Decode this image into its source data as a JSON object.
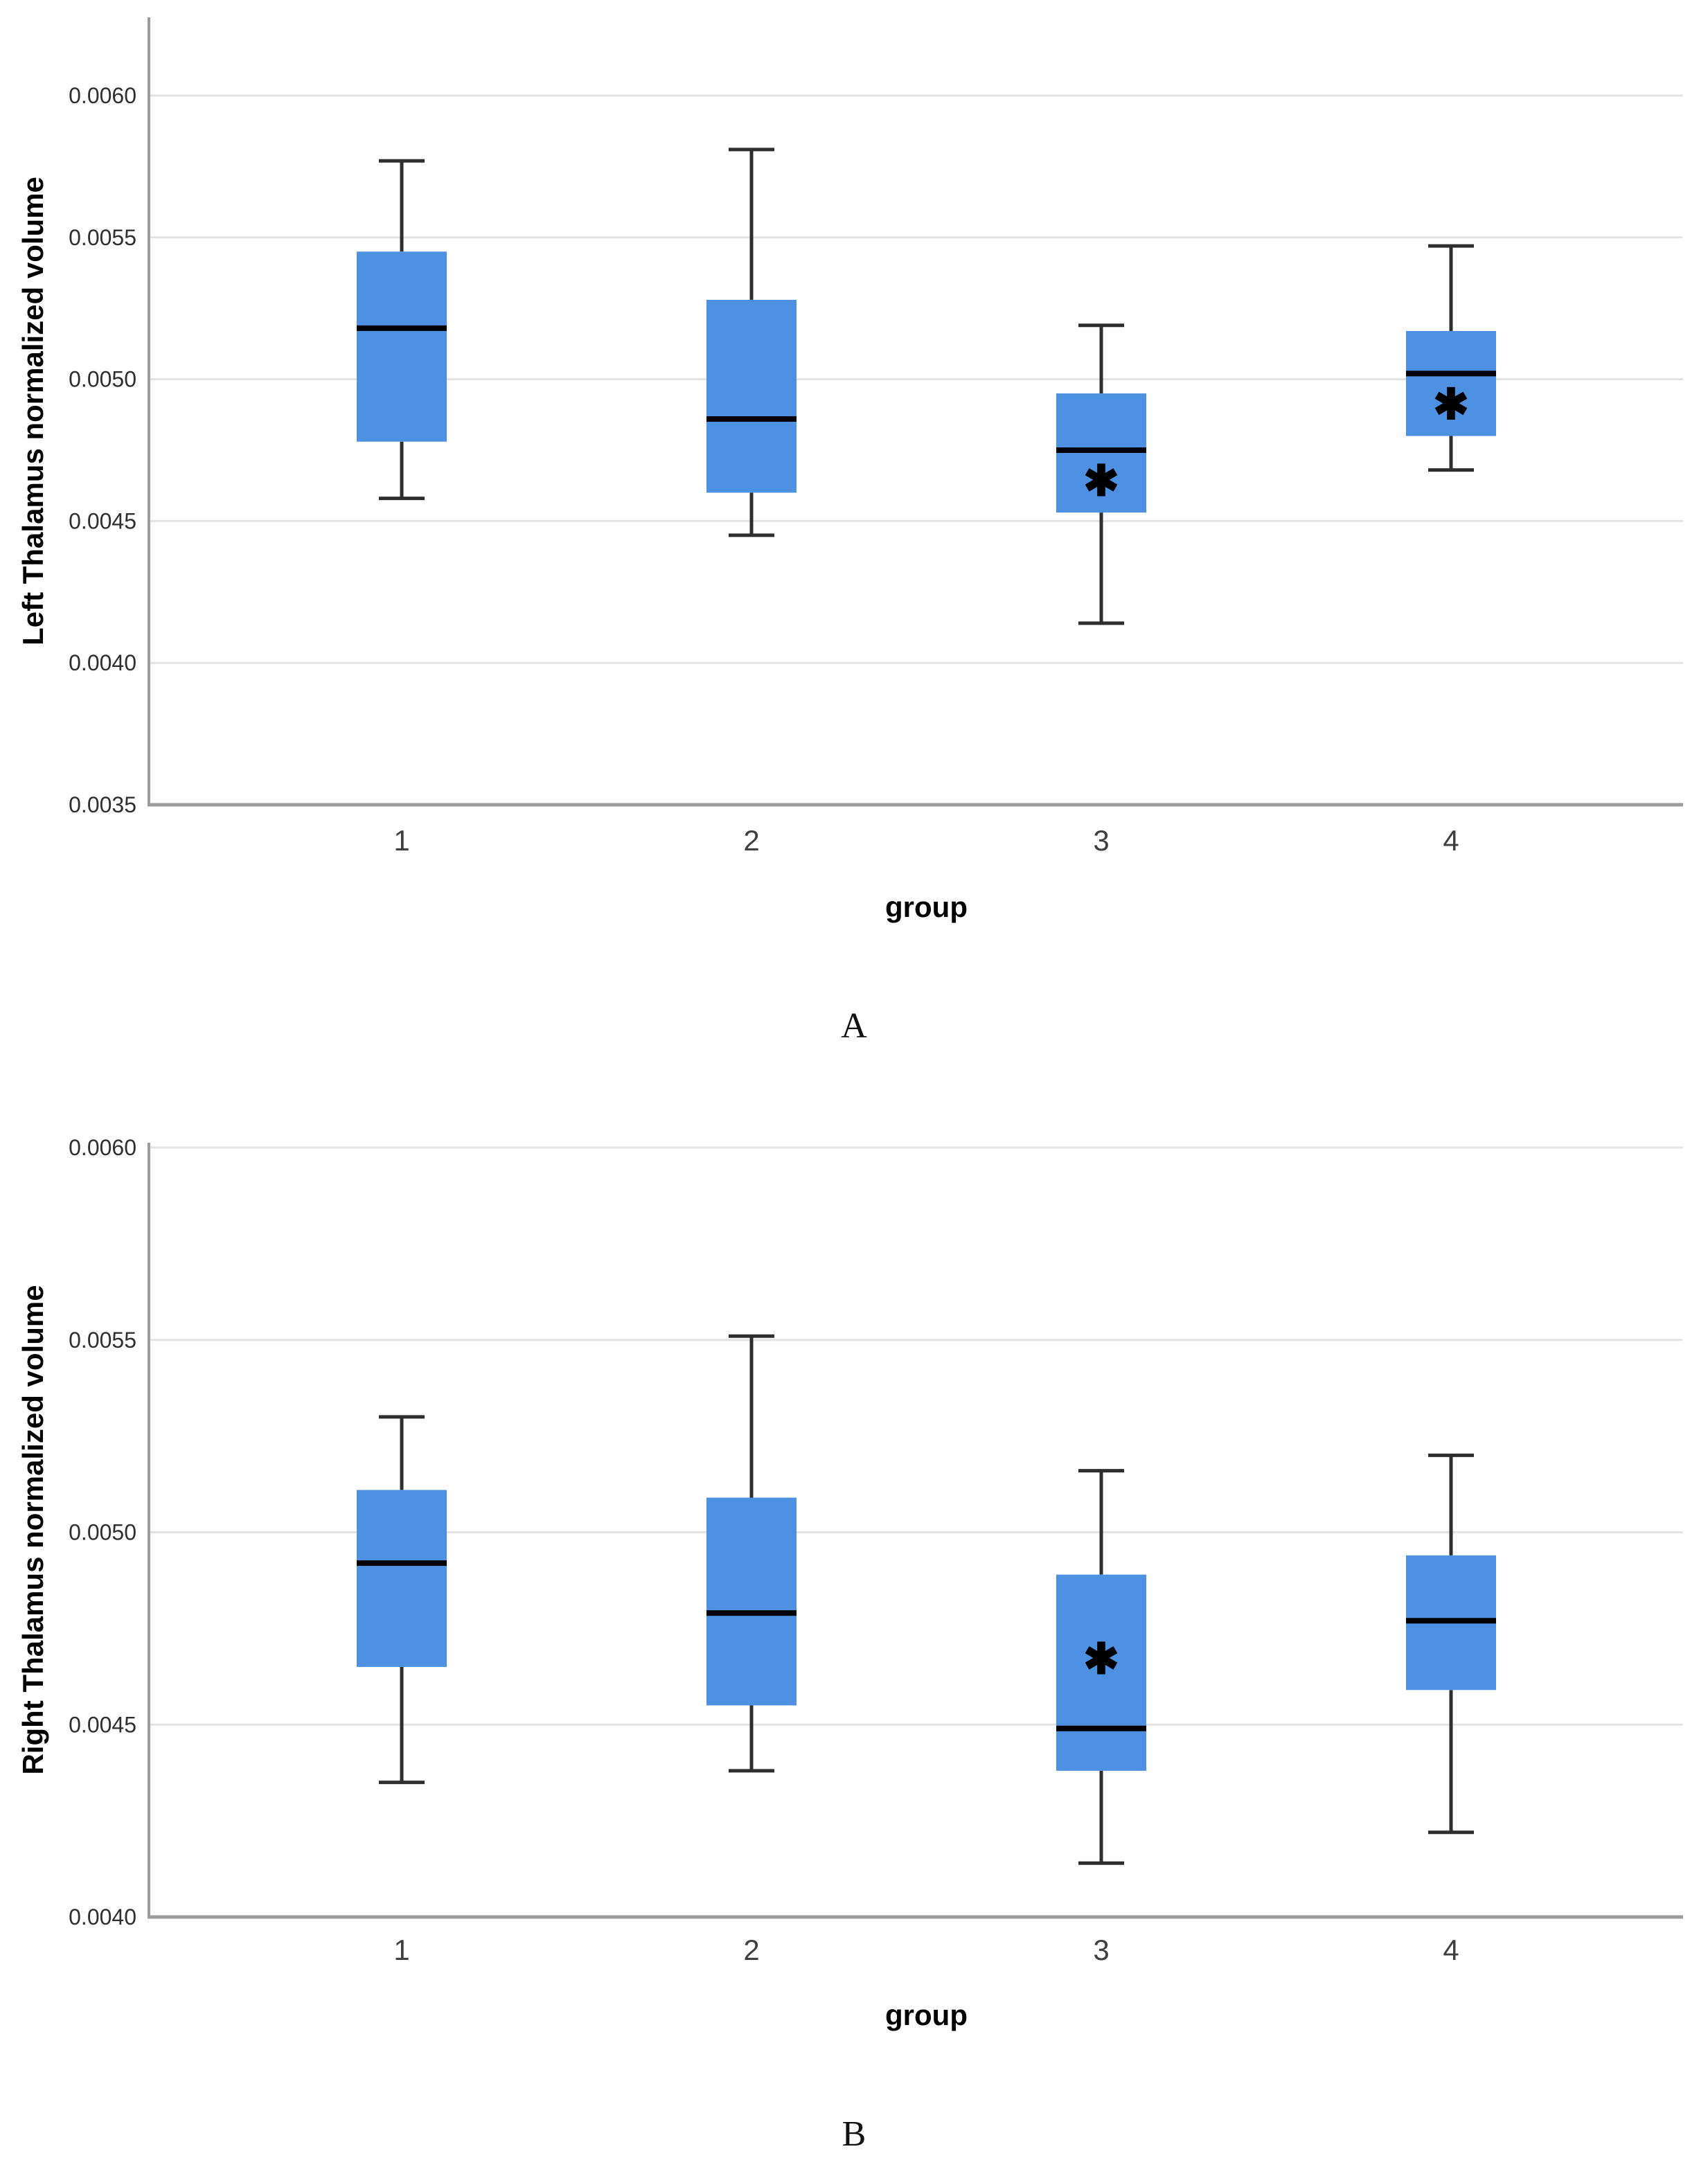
{
  "page": {
    "background": "#ffffff"
  },
  "style": {
    "box_fill": "#4e90e2",
    "median_color": "#000000",
    "whisker_color": "#2e2e2e",
    "gridline_color": "#e3e3e3",
    "axis_color": "#9b9b9b",
    "y_tick_label_color": "#2f2f2f",
    "x_tick_label_color": "#3f3f3f",
    "axis_title_color": "#000000",
    "caption_color": "#111111",
    "star_color": "#000000"
  },
  "chart_data": [
    {
      "id": "A",
      "type": "box",
      "caption": "A",
      "xlabel": "group",
      "ylabel": "Left Thalamus normalized volume",
      "categories": [
        "1",
        "2",
        "3",
        "4"
      ],
      "ylim": [
        0.0035,
        0.006
      ],
      "yticks": [
        "0.0060",
        "0.0055",
        "0.0050",
        "0.0045",
        "0.0040",
        "0.0035"
      ],
      "grid": true,
      "legend": "none",
      "star_symbol": "✱",
      "boxes": [
        {
          "group": "1",
          "whisker_low": 0.00458,
          "q1": 0.00478,
          "median": 0.00518,
          "q3": 0.00545,
          "whisker_high": 0.00577,
          "star": null
        },
        {
          "group": "2",
          "whisker_low": 0.00445,
          "q1": 0.0046,
          "median": 0.00486,
          "q3": 0.00528,
          "whisker_high": 0.00581,
          "star": null
        },
        {
          "group": "3",
          "whisker_low": 0.00414,
          "q1": 0.00453,
          "median": 0.00475,
          "q3": 0.00495,
          "whisker_high": 0.00519,
          "star": 0.00464
        },
        {
          "group": "4",
          "whisker_low": 0.00468,
          "q1": 0.0048,
          "median": 0.00502,
          "q3": 0.00517,
          "whisker_high": 0.00547,
          "star": 0.00491
        }
      ]
    },
    {
      "id": "B",
      "type": "box",
      "caption": "B",
      "xlabel": "group",
      "ylabel": "Right Thalamus normalized volume",
      "categories": [
        "1",
        "2",
        "3",
        "4"
      ],
      "ylim": [
        0.004,
        0.006
      ],
      "yticks": [
        "0.0060",
        "0.0055",
        "0.0050",
        "0.0045",
        "0.0040"
      ],
      "grid": true,
      "legend": "none",
      "star_symbol": "✱",
      "boxes": [
        {
          "group": "1",
          "whisker_low": 0.00435,
          "q1": 0.00465,
          "median": 0.00492,
          "q3": 0.00511,
          "whisker_high": 0.0053,
          "star": null
        },
        {
          "group": "2",
          "whisker_low": 0.00438,
          "q1": 0.00455,
          "median": 0.00479,
          "q3": 0.00509,
          "whisker_high": 0.00551,
          "star": null
        },
        {
          "group": "3",
          "whisker_low": 0.00414,
          "q1": 0.00438,
          "median": 0.00449,
          "q3": 0.00489,
          "whisker_high": 0.00516,
          "star": 0.00467
        },
        {
          "group": "4",
          "whisker_low": 0.00422,
          "q1": 0.00459,
          "median": 0.00477,
          "q3": 0.00494,
          "whisker_high": 0.0052,
          "star": null
        }
      ]
    }
  ]
}
